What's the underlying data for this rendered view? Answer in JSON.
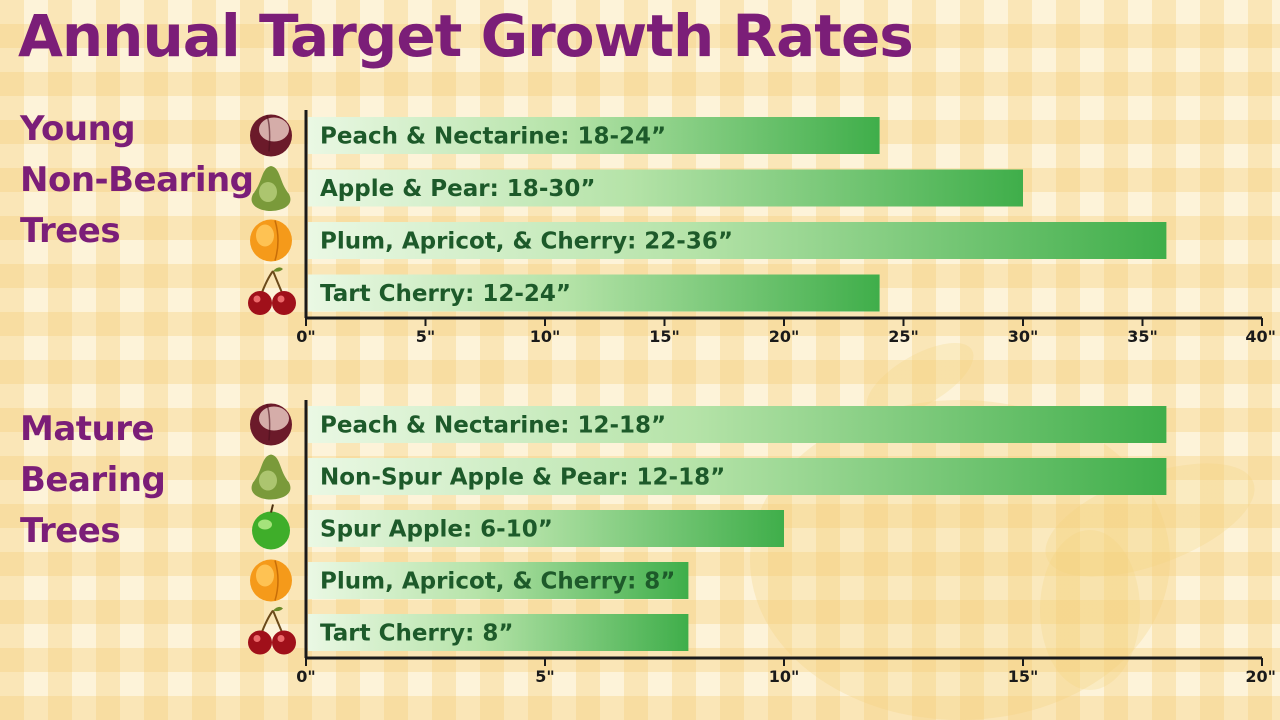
{
  "title": "Annual Target Growth Rates",
  "colors": {
    "title": "#7b1e78",
    "bar_dark": "#3fae4a",
    "bar_light": "#d6f1cf",
    "label_text": "#1d5a2a",
    "axis": "#1a1a1a",
    "background": "#fdf3d9"
  },
  "groups": [
    {
      "label_lines": [
        "Young",
        "Non-Bearing",
        "Trees"
      ]
    },
    {
      "label_lines": [
        "Mature",
        "Bearing",
        "Trees"
      ]
    }
  ],
  "chart_data": [
    {
      "type": "bar",
      "orientation": "horizontal",
      "categories": [
        "Peach & Nectarine: 18-24”",
        "Apple & Pear: 18-30”",
        "Plum, Apricot, & Cherry: 22-36”",
        "Tart Cherry: 12-24”"
      ],
      "icons": [
        "peach-icon",
        "pear-icon",
        "apricot-icon",
        "cherry-icon"
      ],
      "values": [
        24,
        30,
        36,
        24
      ],
      "xlim": [
        0,
        40
      ],
      "xticks": [
        0,
        5,
        10,
        15,
        20,
        25,
        30,
        35,
        40
      ],
      "xtick_labels": [
        "0\"",
        "5\"",
        "10\"",
        "15\"",
        "20\"",
        "25\"",
        "30\"",
        "35\"",
        "40\""
      ]
    },
    {
      "type": "bar",
      "orientation": "horizontal",
      "categories": [
        "Peach & Nectarine: 12-18”",
        "Non-Spur Apple & Pear: 12-18”",
        "Spur Apple: 6-10”",
        "Plum, Apricot, & Cherry: 8”",
        "Tart Cherry: 8”"
      ],
      "icons": [
        "peach-icon",
        "pear-icon",
        "green-apple-icon",
        "apricot-icon",
        "cherry-icon"
      ],
      "values": [
        18,
        18,
        10,
        8,
        8
      ],
      "xlim": [
        0,
        20
      ],
      "xticks": [
        0,
        5,
        10,
        15,
        20
      ],
      "xtick_labels": [
        "0\"",
        "5\"",
        "10\"",
        "15\"",
        "20\""
      ]
    }
  ]
}
